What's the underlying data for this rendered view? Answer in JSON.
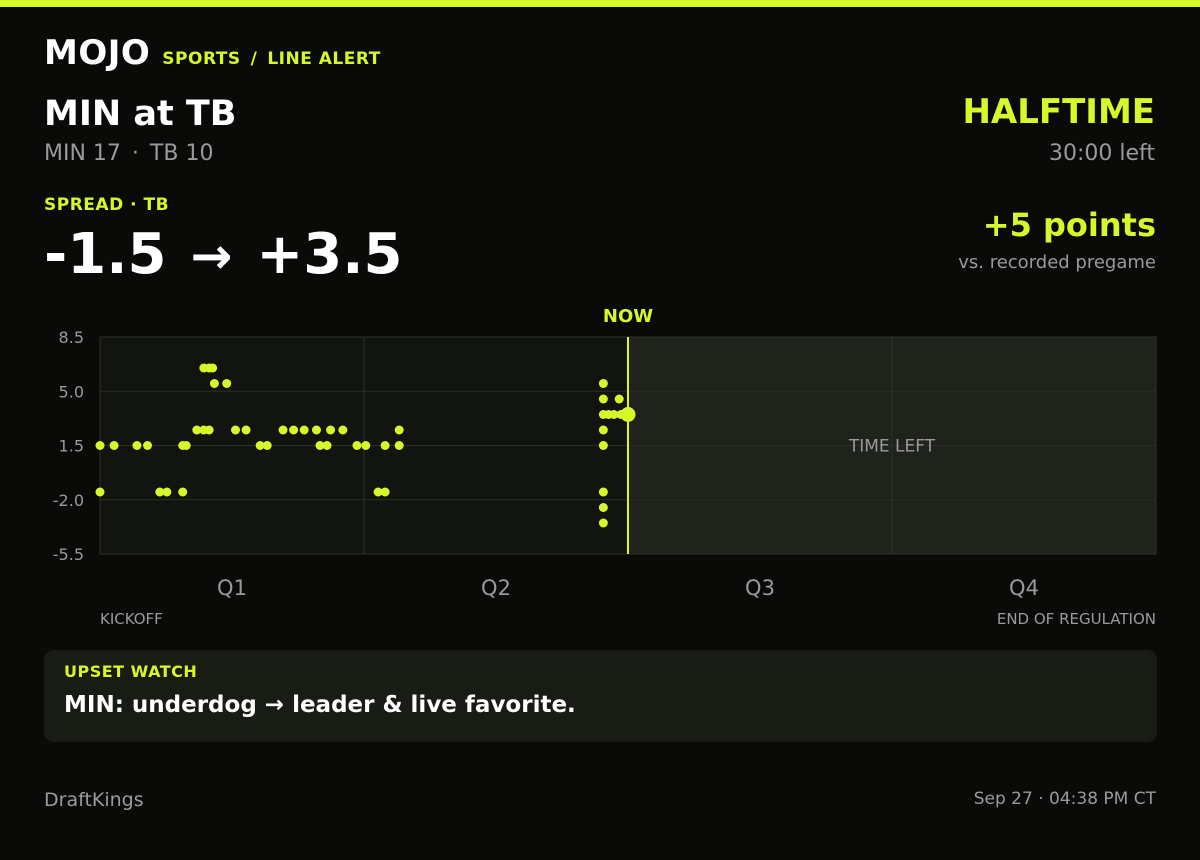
{
  "brand": {
    "logo": "MOJO",
    "section": "SPORTS",
    "separator": "/",
    "page": "LINE ALERT"
  },
  "game": {
    "matchup": "MIN at TB",
    "away_score": "MIN 17",
    "score_separator": "·",
    "home_score": "TB 10",
    "status": "HALFTIME",
    "time_left": "30:00 left"
  },
  "spread": {
    "label": "SPREAD · TB",
    "from": "-1.5",
    "arrow": "→",
    "to": "+3.5",
    "move": "+5 points",
    "move_sub": "vs. recorded pregame"
  },
  "chart_data": {
    "type": "scatter",
    "x_unit": "game minutes elapsed",
    "xlim": [
      0,
      60
    ],
    "ylim": [
      -5.5,
      8.5
    ],
    "yticks": [
      8.5,
      5.0,
      1.5,
      -2.0,
      -5.5
    ],
    "ytick_labels": [
      "8.5",
      "5.0",
      "1.5",
      "-2.0",
      "-5.5"
    ],
    "quarters": [
      "Q1",
      "Q2",
      "Q3",
      "Q4"
    ],
    "start_label": "KICKOFF",
    "end_label": "END OF REGULATION",
    "now_label": "NOW",
    "now_x": 30,
    "remaining_label": "TIME LEFT",
    "current": {
      "x": 30,
      "y": 3.5
    },
    "points": [
      {
        "x": 0,
        "y": 1.5
      },
      {
        "x": 0,
        "y": -1.5
      },
      {
        "x": 0.8,
        "y": 1.5
      },
      {
        "x": 2.1,
        "y": 1.5
      },
      {
        "x": 2.7,
        "y": 1.5
      },
      {
        "x": 3.4,
        "y": -1.5
      },
      {
        "x": 3.8,
        "y": -1.5
      },
      {
        "x": 4.7,
        "y": -1.5
      },
      {
        "x": 4.7,
        "y": 1.5
      },
      {
        "x": 4.9,
        "y": 1.5
      },
      {
        "x": 5.5,
        "y": 2.5
      },
      {
        "x": 5.9,
        "y": 2.5
      },
      {
        "x": 6.2,
        "y": 2.5
      },
      {
        "x": 5.9,
        "y": 6.5
      },
      {
        "x": 6.2,
        "y": 6.5
      },
      {
        "x": 6.4,
        "y": 6.5
      },
      {
        "x": 6.5,
        "y": 5.5
      },
      {
        "x": 7.2,
        "y": 5.5
      },
      {
        "x": 7.7,
        "y": 2.5
      },
      {
        "x": 8.3,
        "y": 2.5
      },
      {
        "x": 9.1,
        "y": 1.5
      },
      {
        "x": 9.5,
        "y": 1.5
      },
      {
        "x": 10.4,
        "y": 2.5
      },
      {
        "x": 11.0,
        "y": 2.5
      },
      {
        "x": 11.6,
        "y": 2.5
      },
      {
        "x": 12.3,
        "y": 2.5
      },
      {
        "x": 12.5,
        "y": 1.5
      },
      {
        "x": 12.9,
        "y": 1.5
      },
      {
        "x": 13.1,
        "y": 2.5
      },
      {
        "x": 13.8,
        "y": 2.5
      },
      {
        "x": 14.6,
        "y": 1.5
      },
      {
        "x": 15.1,
        "y": 1.5
      },
      {
        "x": 15.8,
        "y": -1.5
      },
      {
        "x": 16.2,
        "y": -1.5
      },
      {
        "x": 16.2,
        "y": 1.5
      },
      {
        "x": 17.0,
        "y": 1.5
      },
      {
        "x": 17.0,
        "y": 2.5
      },
      {
        "x": 28.6,
        "y": 5.5
      },
      {
        "x": 28.6,
        "y": 4.5
      },
      {
        "x": 28.6,
        "y": 3.5
      },
      {
        "x": 28.6,
        "y": 2.5
      },
      {
        "x": 28.6,
        "y": 1.5
      },
      {
        "x": 28.6,
        "y": -1.5
      },
      {
        "x": 28.6,
        "y": -2.5
      },
      {
        "x": 28.6,
        "y": -3.5
      },
      {
        "x": 28.9,
        "y": 3.5
      },
      {
        "x": 29.2,
        "y": 3.5
      },
      {
        "x": 29.5,
        "y": 4.5
      },
      {
        "x": 29.6,
        "y": 3.5
      },
      {
        "x": 29.8,
        "y": 3.5
      }
    ]
  },
  "callout": {
    "title": "UPSET WATCH",
    "text": "MIN: underdog → leader & live favorite."
  },
  "footer": {
    "source": "DraftKings",
    "timestamp": "Sep 27 · 04:38 PM CT"
  },
  "colors": {
    "accent": "#d8f72a",
    "background": "#0a0b09",
    "muted": "#9a9a9a",
    "panel": "#181c15"
  }
}
